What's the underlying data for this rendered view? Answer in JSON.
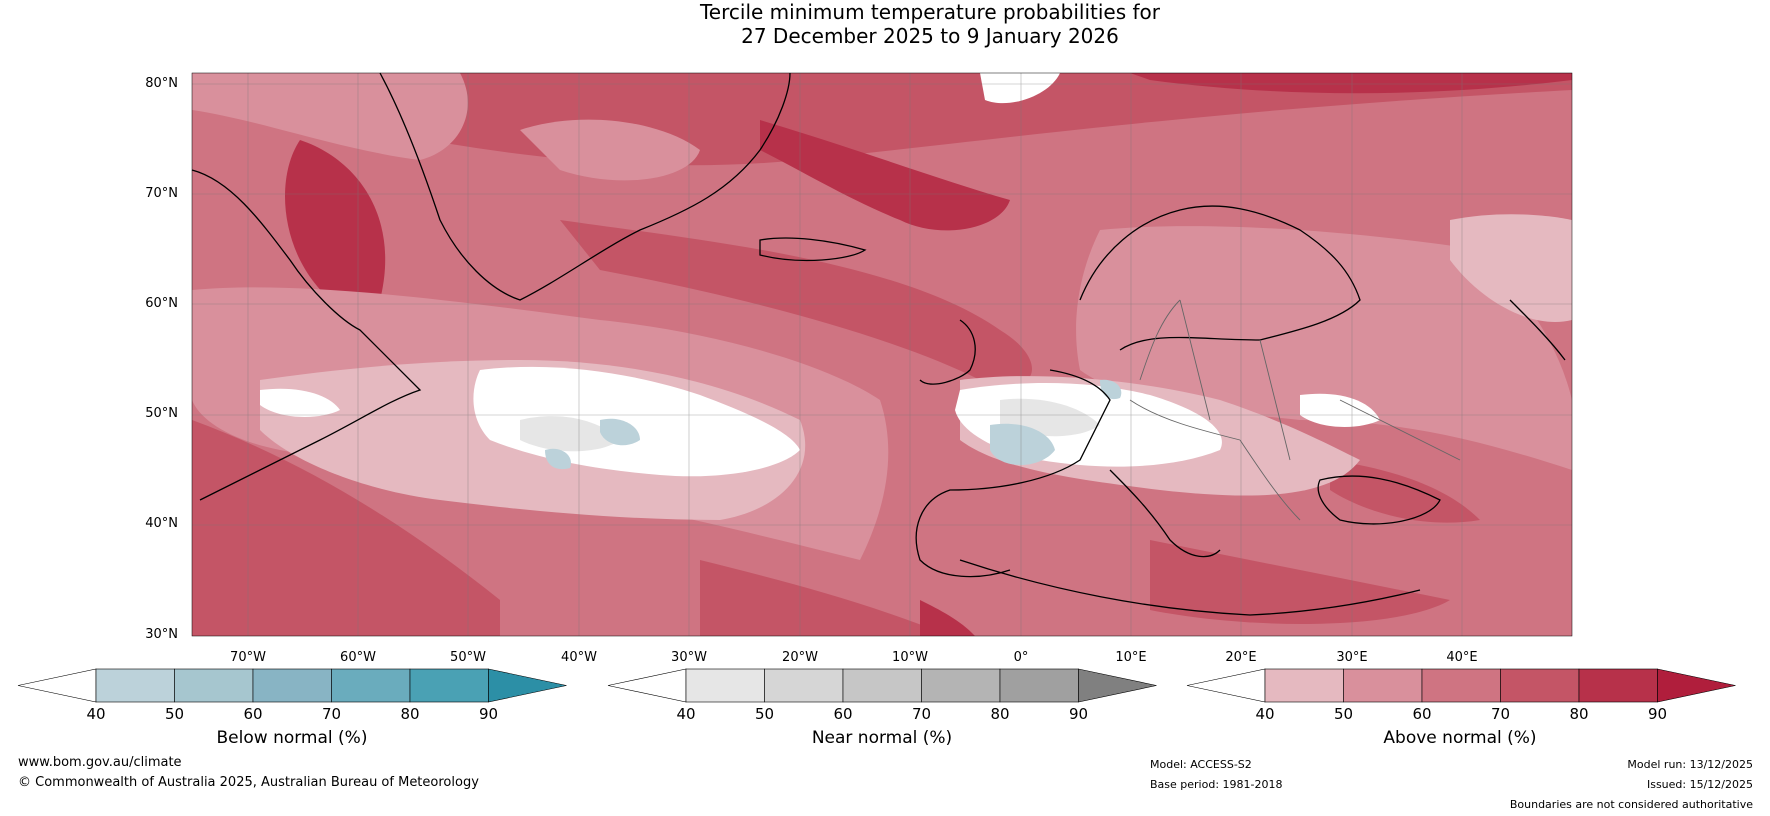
{
  "title": {
    "line1": "Tercile minimum temperature probabilities for",
    "line2": "27 December 2025 to 9 January 2026"
  },
  "map": {
    "lat_labels": [
      "80°N",
      "70°N",
      "60°N",
      "50°N",
      "40°N",
      "30°N"
    ],
    "lon_labels": [
      "70°W",
      "60°W",
      "50°W",
      "40°W",
      "30°W",
      "20°W",
      "10°W",
      "0°",
      "10°E",
      "20°E",
      "30°E",
      "40°E"
    ],
    "extent": {
      "lon_min": -75,
      "lon_max": 50,
      "lat_min": 30,
      "lat_max": 81
    }
  },
  "colorbars": [
    {
      "name": "below",
      "label": "Below normal (%)",
      "ticks": [
        "40",
        "50",
        "60",
        "70",
        "80",
        "90"
      ],
      "colors": [
        "#ffffff",
        "#bcd2da",
        "#a6c6cf",
        "#88b4c4",
        "#6aacbd",
        "#4aa1b4",
        "#2c8fa6"
      ]
    },
    {
      "name": "near",
      "label": "Near normal (%)",
      "ticks": [
        "40",
        "50",
        "60",
        "70",
        "80",
        "90"
      ],
      "colors": [
        "#ffffff",
        "#e6e6e6",
        "#d6d6d6",
        "#c6c6c6",
        "#b4b4b4",
        "#a0a0a0",
        "#808080"
      ]
    },
    {
      "name": "above",
      "label": "Above normal (%)",
      "ticks": [
        "40",
        "50",
        "60",
        "70",
        "80",
        "90"
      ],
      "colors": [
        "#ffffff",
        "#e5b9c0",
        "#d9909c",
        "#cf7482",
        "#c45566",
        "#b7314a",
        "#b01e3c"
      ]
    }
  ],
  "footer": {
    "website": "www.bom.gov.au/climate",
    "copyright": "© Commonwealth of Australia 2025, Australian Bureau of Meteorology",
    "model": "Model: ACCESS-S2",
    "base_period": "Base period: 1981-2018",
    "model_run": "Model run: 13/12/2025",
    "issued": "Issued: 15/12/2025",
    "disclaimer": "Boundaries are not considered authoritative"
  }
}
